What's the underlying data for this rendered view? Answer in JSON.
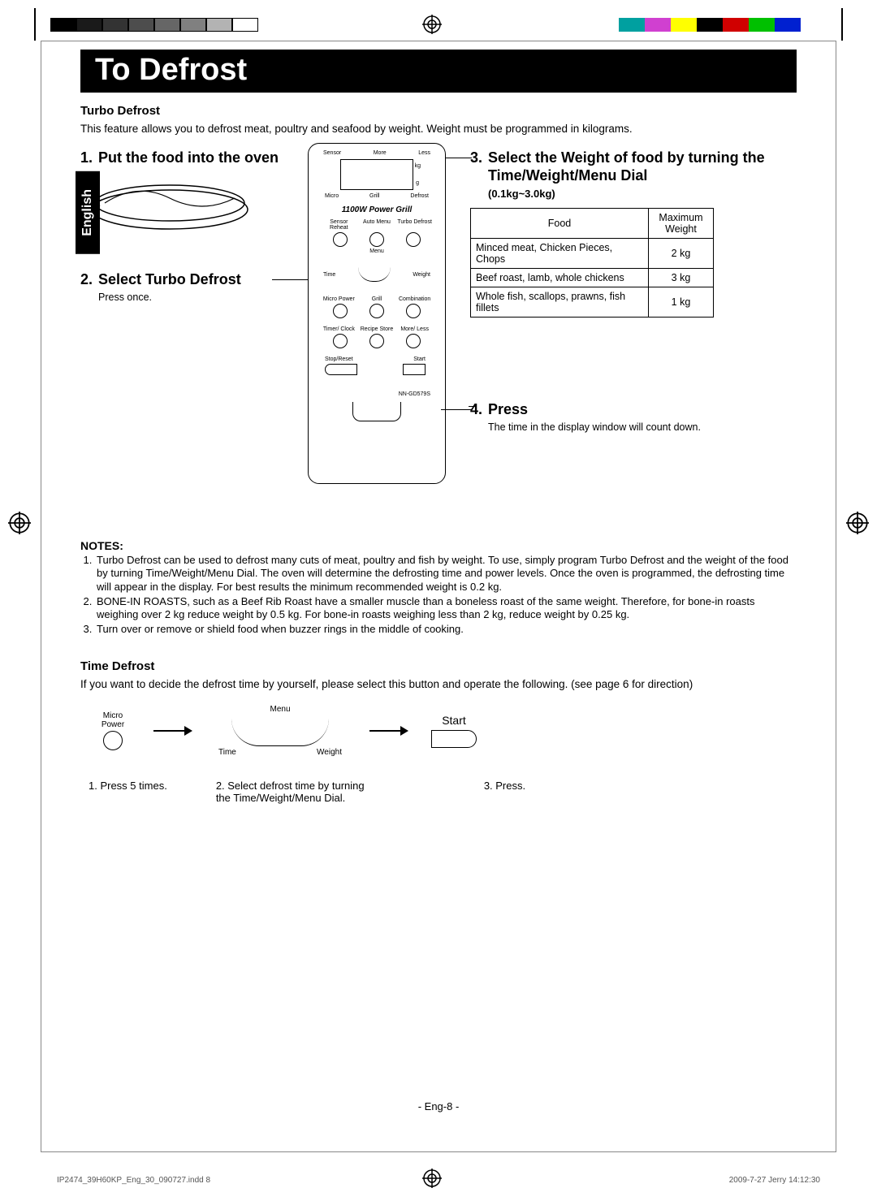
{
  "grays": [
    "#000000",
    "#1a1a1a",
    "#333333",
    "#4d4d4d",
    "#666666",
    "#808080",
    "#b3b3b3",
    "#ffffff"
  ],
  "colorbars": [
    "#00a0a0",
    "#d040d0",
    "#ffff00",
    "#000000",
    "#d00000",
    "#00c000",
    "#0020d0",
    "#ffffff"
  ],
  "title": "To Defrost",
  "langtab": "English",
  "turbo": {
    "heading": "Turbo Defrost",
    "intro": "This feature allows you to defrost meat, poultry and seafood by weight. Weight must be programmed in kilograms."
  },
  "step1": {
    "num": "1.",
    "title": "Put the food into the oven"
  },
  "step2": {
    "num": "2.",
    "title": "Select Turbo Defrost",
    "note": "Press once."
  },
  "step3": {
    "num": "3.",
    "title": "Select the Weight of food by turning the Time/Weight/Menu Dial",
    "range": "(0.1kg~3.0kg)"
  },
  "step4": {
    "num": "4.",
    "title": "Press",
    "note": "The time in the display window will count down."
  },
  "foodtable": {
    "col_food": "Food",
    "col_weight": "Maximum Weight",
    "rows": [
      {
        "food": "Minced meat, Chicken Pieces, Chops",
        "weight": "2 kg"
      },
      {
        "food": "Beef roast, lamb, whole chickens",
        "weight": "3 kg"
      },
      {
        "food": "Whole fish, scallops, prawns, fish fillets",
        "weight": "1 kg"
      }
    ]
  },
  "notes": {
    "heading": "NOTES:",
    "items": [
      "Turbo Defrost can be used to defrost many cuts of meat, poultry and fish by weight. To use, simply program Turbo Defrost and the weight of the food by turning Time/Weight/Menu Dial. The oven will determine the defrosting time and power levels. Once the oven is programmed, the defrosting time will appear in the display. For best results the minimum recommended weight is 0.2 kg.",
      "BONE-IN ROASTS, such as a Beef Rib Roast have a smaller muscle than a boneless roast of the same weight. Therefore, for bone-in roasts weighing over 2 kg reduce weight by 0.5 kg. For bone-in roasts weighing less than 2 kg, reduce weight by 0.25 kg.",
      "Turn over or remove or shield food when buzzer rings in the middle of cooking."
    ]
  },
  "panel": {
    "top_labels": [
      "Sensor",
      "More",
      "Less"
    ],
    "below_screen": [
      "Micro",
      "Grill",
      "Defrost"
    ],
    "side_kg": "kg",
    "side_g": "g",
    "powergrill": "1100W Power Grill",
    "row1_labels": [
      "Sensor Reheat",
      "Auto Menu",
      "Turbo Defrost"
    ],
    "menu": "Menu",
    "time": "Time",
    "weight": "Weight",
    "row2_labels": [
      "Micro Power",
      "Grill",
      "Combination"
    ],
    "row3_labels": [
      "Timer/ Clock",
      "Recipe Store",
      "More/ Less"
    ],
    "stop": "Stop/Reset",
    "start": "Start",
    "model": "NN-GD579S"
  },
  "timedefrost": {
    "heading": "Time Defrost",
    "intro": "If you want to decide the defrost time by yourself, please select this button and operate the following. (see page 6 for direction)",
    "micro_label": "Micro Power",
    "dial_menu": "Menu",
    "dial_time": "Time",
    "dial_weight": "Weight",
    "start": "Start",
    "s1": "1. Press 5 times.",
    "s2": "2. Select defrost time by turning the Time/Weight/Menu Dial.",
    "s3": "3. Press."
  },
  "pagefoot": "- Eng-8 -",
  "printfoot_left": "IP2474_39H60KP_Eng_30_090727.indd   8",
  "printfoot_right": "2009-7-27   Jerry 14:12:30"
}
